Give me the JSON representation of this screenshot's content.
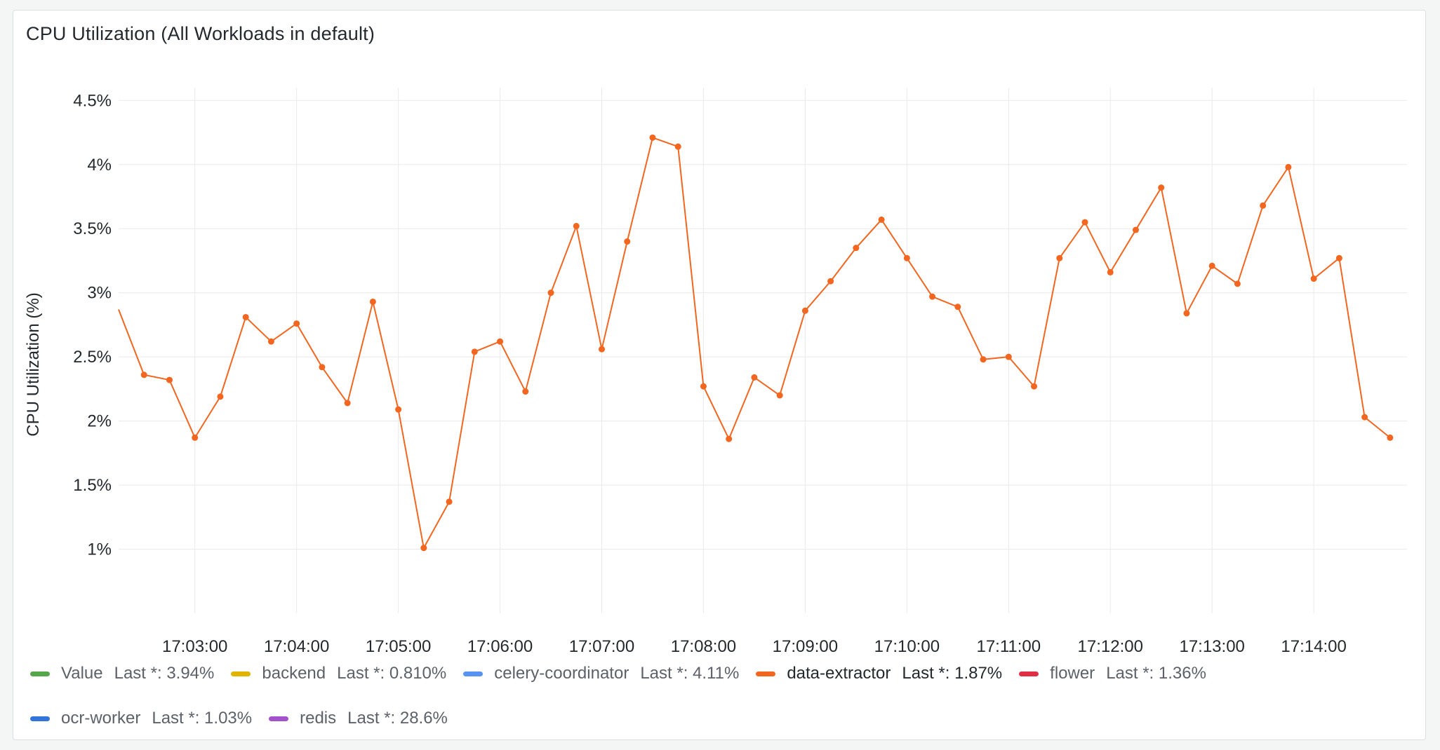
{
  "panel": {
    "title": "CPU Utilization (All Workloads in default)"
  },
  "chart_data": {
    "type": "line",
    "ylabel": "CPU Utilization (%)",
    "xlabel": "",
    "ylim": [
      0.5,
      4.6
    ],
    "yticks": [
      1,
      1.5,
      2,
      2.5,
      3,
      3.5,
      4,
      4.5
    ],
    "ytick_labels": [
      "1%",
      "1.5%",
      "2%",
      "2.5%",
      "3%",
      "3.5%",
      "4%",
      "4.5%"
    ],
    "xlim": [
      "17:02:15",
      "17:14:55"
    ],
    "xticks": [
      "17:03:00",
      "17:04:00",
      "17:05:00",
      "17:06:00",
      "17:07:00",
      "17:08:00",
      "17:09:00",
      "17:10:00",
      "17:11:00",
      "17:12:00",
      "17:13:00",
      "17:14:00"
    ],
    "grid": true,
    "series": [
      {
        "name": "data-extractor",
        "color": "#f2661f",
        "x": [
          "17:02:15",
          "17:02:30",
          "17:02:45",
          "17:03:00",
          "17:03:15",
          "17:03:30",
          "17:03:45",
          "17:04:00",
          "17:04:15",
          "17:04:30",
          "17:04:45",
          "17:05:00",
          "17:05:15",
          "17:05:30",
          "17:05:45",
          "17:06:00",
          "17:06:15",
          "17:06:30",
          "17:06:45",
          "17:07:00",
          "17:07:15",
          "17:07:30",
          "17:07:45",
          "17:08:00",
          "17:08:15",
          "17:08:30",
          "17:08:45",
          "17:09:00",
          "17:09:15",
          "17:09:30",
          "17:09:45",
          "17:10:00",
          "17:10:15",
          "17:10:30",
          "17:10:45",
          "17:11:00",
          "17:11:15",
          "17:11:30",
          "17:11:45",
          "17:12:00",
          "17:12:15",
          "17:12:30",
          "17:12:45",
          "17:13:00",
          "17:13:15",
          "17:13:30",
          "17:13:45",
          "17:14:00",
          "17:14:15",
          "17:14:30",
          "17:14:45"
        ],
        "values": [
          2.87,
          2.36,
          2.32,
          1.87,
          2.19,
          2.81,
          2.62,
          2.76,
          2.42,
          2.14,
          2.93,
          2.09,
          1.01,
          1.37,
          2.54,
          2.62,
          2.23,
          3.0,
          3.52,
          2.56,
          3.4,
          4.21,
          4.14,
          2.27,
          1.86,
          2.34,
          2.2,
          2.86,
          3.09,
          3.35,
          3.57,
          3.27,
          2.97,
          2.89,
          2.48,
          2.5,
          2.27,
          3.27,
          3.55,
          3.16,
          3.49,
          3.82,
          2.84,
          3.21,
          3.07,
          3.68,
          3.98,
          3.11,
          3.27,
          2.03,
          1.87
        ],
        "markers": true
      }
    ],
    "legend_placement": "bottom"
  },
  "legend": {
    "items": [
      {
        "name": "Value",
        "value": "Last *: 3.94%",
        "color": "#56a64b"
      },
      {
        "name": "backend",
        "value": "Last *: 0.810%",
        "color": "#e0b400"
      },
      {
        "name": "celery-coordinator",
        "value": "Last *: 4.11%",
        "color": "#5794f2"
      },
      {
        "name": "data-extractor",
        "value": "Last *: 1.87%",
        "color": "#f2661f"
      },
      {
        "name": "flower",
        "value": "Last *: 1.36%",
        "color": "#e02f44"
      },
      {
        "name": "ocr-worker",
        "value": "Last *: 1.03%",
        "color": "#3274d9"
      },
      {
        "name": "redis",
        "value": "Last *: 28.6%",
        "color": "#a352cc"
      }
    ]
  }
}
